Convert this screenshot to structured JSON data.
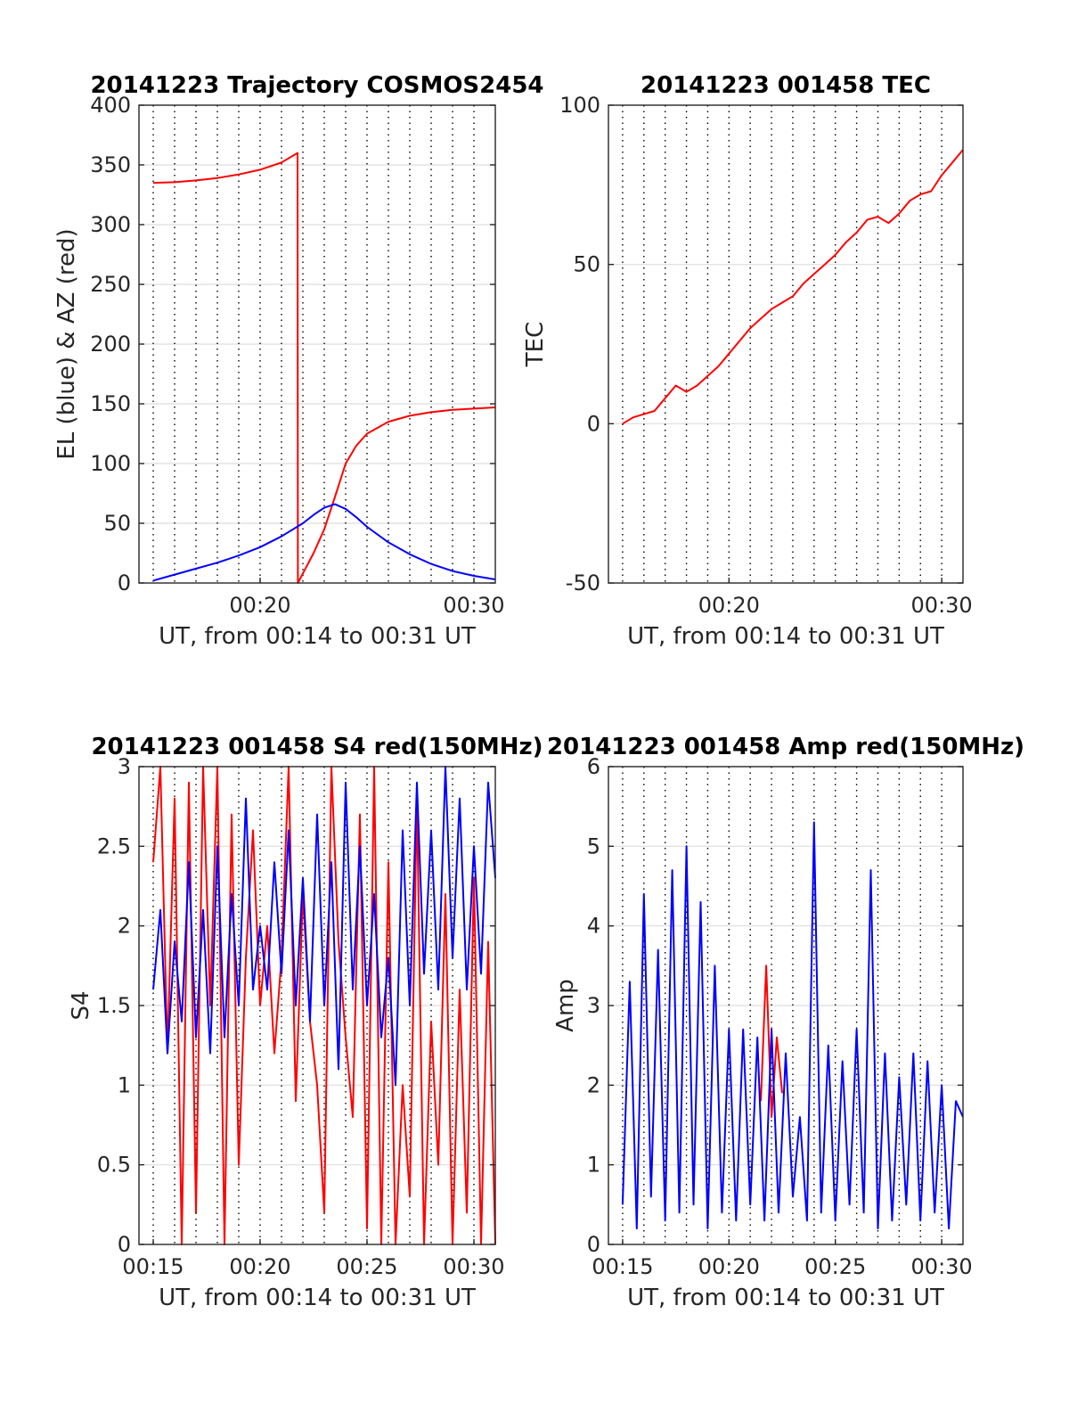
{
  "chart_data": [
    {
      "type": "line",
      "title": "20141223 Trajectory COSMOS2454",
      "xlabel": "UT, from 00:14 to 00:31 UT",
      "ylabel": "EL (blue) & AZ (red)",
      "xlim": [
        "00:14:20",
        "00:31:00"
      ],
      "ylim": [
        0,
        400
      ],
      "yticks": [
        0,
        50,
        100,
        150,
        200,
        250,
        300,
        350,
        400
      ],
      "xticks": [
        "00:20",
        "00:30"
      ],
      "minute_grid": [
        "00:15",
        "00:16",
        "00:17",
        "00:18",
        "00:19",
        "00:20",
        "00:21",
        "00:22",
        "00:23",
        "00:24",
        "00:25",
        "00:26",
        "00:27",
        "00:28",
        "00:29",
        "00:30"
      ],
      "grid": true,
      "series": [
        {
          "color": "#ff0000",
          "x": [
            "00:15:00",
            "00:16:00",
            "00:17:00",
            "00:18:00",
            "00:19:00",
            "00:20:00",
            "00:21:00",
            "00:21:45",
            "00:21:46",
            "00:22:00",
            "00:22:30",
            "00:23:00",
            "00:23:30",
            "00:24:00",
            "00:24:30",
            "00:25:00",
            "00:26:00",
            "00:27:00",
            "00:28:00",
            "00:29:00",
            "00:30:00",
            "00:31:00"
          ],
          "y": [
            335,
            335.5,
            337,
            339,
            342,
            346,
            352,
            360,
            0,
            8,
            25,
            45,
            72,
            100,
            115,
            125,
            135,
            140,
            143,
            145,
            146,
            147
          ]
        },
        {
          "color": "#0000ff",
          "x": [
            "00:15:00",
            "00:16:00",
            "00:17:00",
            "00:18:00",
            "00:19:00",
            "00:20:00",
            "00:21:00",
            "00:22:00",
            "00:22:30",
            "00:23:00",
            "00:23:30",
            "00:24:00",
            "00:24:30",
            "00:25:00",
            "00:26:00",
            "00:27:00",
            "00:28:00",
            "00:29:00",
            "00:30:00",
            "00:31:00"
          ],
          "y": [
            2,
            7,
            12,
            17,
            23,
            30,
            39,
            50,
            57,
            63,
            66,
            62,
            55,
            47,
            34,
            24,
            16,
            10,
            6,
            3
          ]
        }
      ]
    },
    {
      "type": "line",
      "title": "20141223 001458 TEC",
      "xlabel": "UT, from 00:14 to 00:31 UT",
      "ylabel": "TEC",
      "xlim": [
        "00:14:20",
        "00:31:00"
      ],
      "ylim": [
        -50,
        100
      ],
      "yticks": [
        -50,
        0,
        50,
        100
      ],
      "xticks": [
        "00:20",
        "00:30"
      ],
      "minute_grid": [
        "00:15",
        "00:16",
        "00:17",
        "00:18",
        "00:19",
        "00:20",
        "00:21",
        "00:22",
        "00:23",
        "00:24",
        "00:25",
        "00:26",
        "00:27",
        "00:28",
        "00:29",
        "00:30"
      ],
      "grid": true,
      "series": [
        {
          "color": "#ff0000",
          "x": [
            "00:15:00",
            "00:15:30",
            "00:16:00",
            "00:16:30",
            "00:17:00",
            "00:17:30",
            "00:18:00",
            "00:18:30",
            "00:19:00",
            "00:19:30",
            "00:20:00",
            "00:20:30",
            "00:21:00",
            "00:21:30",
            "00:22:00",
            "00:22:30",
            "00:23:00",
            "00:23:30",
            "00:24:00",
            "00:24:30",
            "00:25:00",
            "00:25:30",
            "00:26:00",
            "00:26:30",
            "00:27:00",
            "00:27:30",
            "00:28:00",
            "00:28:30",
            "00:29:00",
            "00:29:30",
            "00:30:00",
            "00:30:30",
            "00:31:00"
          ],
          "y": [
            0,
            2,
            3,
            4,
            8,
            12,
            10,
            12,
            15,
            18,
            22,
            26,
            30,
            33,
            36,
            38,
            40,
            44,
            47,
            50,
            53,
            57,
            60,
            64,
            65,
            63,
            66,
            70,
            72,
            73,
            78,
            82,
            86
          ]
        }
      ]
    },
    {
      "type": "line",
      "title": "20141223 001458 S4 red(150MHz)",
      "xlabel": "UT, from 00:14 to 00:31 UT",
      "ylabel": "S4",
      "xlim": [
        "00:14:20",
        "00:31:00"
      ],
      "ylim": [
        0,
        3
      ],
      "yticks": [
        0,
        0.5,
        1,
        1.5,
        2,
        2.5,
        3
      ],
      "xticks": [
        "00:15",
        "00:20",
        "00:25",
        "00:30"
      ],
      "minute_grid": [
        "00:15",
        "00:16",
        "00:17",
        "00:18",
        "00:19",
        "00:20",
        "00:21",
        "00:22",
        "00:23",
        "00:24",
        "00:25",
        "00:26",
        "00:27",
        "00:28",
        "00:29",
        "00:30"
      ],
      "grid": true,
      "series": [
        {
          "color": "#ff0000",
          "x": [
            "00:15:00",
            "00:15:20",
            "00:15:40",
            "00:16:00",
            "00:16:20",
            "00:16:40",
            "00:17:00",
            "00:17:20",
            "00:17:40",
            "00:18:00",
            "00:18:20",
            "00:18:40",
            "00:19:00",
            "00:19:20",
            "00:19:40",
            "00:20:00",
            "00:20:20",
            "00:20:40",
            "00:21:00",
            "00:21:20",
            "00:21:40",
            "00:22:00",
            "00:22:20",
            "00:22:40",
            "00:23:00",
            "00:23:20",
            "00:23:40",
            "00:24:00",
            "00:24:20",
            "00:24:40",
            "00:25:00",
            "00:25:20",
            "00:25:40",
            "00:26:00",
            "00:26:20",
            "00:26:40",
            "00:27:00",
            "00:27:20",
            "00:27:40",
            "00:28:00",
            "00:28:20",
            "00:28:40",
            "00:29:00",
            "00:29:20",
            "00:29:40",
            "00:30:00",
            "00:30:20",
            "00:30:40",
            "00:31:00"
          ],
          "y": [
            2.4,
            3.0,
            1.2,
            2.8,
            0,
            2.9,
            0.2,
            3.0,
            1.5,
            3.0,
            0,
            2.7,
            0.5,
            1.8,
            2.6,
            1.5,
            2.0,
            1.2,
            1.8,
            3.0,
            0.9,
            2.2,
            1.4,
            1.0,
            0.2,
            3.0,
            1.9,
            1.3,
            0.8,
            2.7,
            0.1,
            3.0,
            0,
            2.4,
            0,
            1.0,
            0.3,
            2.8,
            0,
            1.4,
            0.5,
            2.2,
            0,
            1.6,
            0.2,
            2.3,
            0,
            1.9,
            0
          ]
        },
        {
          "color": "#0000ff",
          "x": [
            "00:15:00",
            "00:15:20",
            "00:15:40",
            "00:16:00",
            "00:16:20",
            "00:16:40",
            "00:17:00",
            "00:17:20",
            "00:17:40",
            "00:18:00",
            "00:18:20",
            "00:18:40",
            "00:19:00",
            "00:19:20",
            "00:19:40",
            "00:20:00",
            "00:20:20",
            "00:20:40",
            "00:21:00",
            "00:21:20",
            "00:21:40",
            "00:22:00",
            "00:22:20",
            "00:22:40",
            "00:23:00",
            "00:23:20",
            "00:23:40",
            "00:24:00",
            "00:24:20",
            "00:24:40",
            "00:25:00",
            "00:25:20",
            "00:25:40",
            "00:26:00",
            "00:26:20",
            "00:26:40",
            "00:27:00",
            "00:27:20",
            "00:27:40",
            "00:28:00",
            "00:28:20",
            "00:28:40",
            "00:29:00",
            "00:29:20",
            "00:29:40",
            "00:30:00",
            "00:30:20",
            "00:30:40",
            "00:31:00"
          ],
          "y": [
            1.6,
            2.1,
            1.2,
            1.9,
            1.4,
            2.4,
            1.3,
            2.1,
            1.2,
            2.5,
            1.3,
            2.2,
            1.5,
            2.8,
            1.6,
            2.0,
            1.6,
            2.4,
            1.7,
            2.6,
            1.5,
            2.3,
            1.4,
            2.7,
            1.5,
            2.4,
            1.1,
            2.9,
            1.6,
            2.5,
            1.5,
            2.2,
            1.3,
            1.8,
            1.0,
            2.6,
            1.5,
            2.9,
            1.7,
            2.6,
            1.6,
            3.0,
            1.8,
            2.8,
            1.6,
            2.5,
            1.7,
            2.9,
            2.3
          ]
        }
      ]
    },
    {
      "type": "line",
      "title": "20141223 001458 Amp red(150MHz)",
      "xlabel": "UT, from 00:14 to 00:31 UT",
      "ylabel": "Amp",
      "xlim": [
        "00:14:20",
        "00:31:00"
      ],
      "ylim": [
        0,
        6
      ],
      "yticks": [
        0,
        1,
        2,
        3,
        4,
        5,
        6
      ],
      "xticks": [
        "00:15",
        "00:20",
        "00:25",
        "00:30"
      ],
      "minute_grid": [
        "00:15",
        "00:16",
        "00:17",
        "00:18",
        "00:19",
        "00:20",
        "00:21",
        "00:22",
        "00:23",
        "00:24",
        "00:25",
        "00:26",
        "00:27",
        "00:28",
        "00:29",
        "00:30"
      ],
      "grid": true,
      "series": [
        {
          "color": "#ff0000",
          "x": [
            "00:21:30",
            "00:21:45",
            "00:22:00",
            "00:22:15",
            "00:22:30"
          ],
          "y": [
            1.8,
            3.5,
            1.6,
            2.6,
            1.9
          ]
        },
        {
          "color": "#0000ff",
          "x": [
            "00:15:00",
            "00:15:20",
            "00:15:40",
            "00:16:00",
            "00:16:20",
            "00:16:40",
            "00:17:00",
            "00:17:20",
            "00:17:40",
            "00:18:00",
            "00:18:20",
            "00:18:40",
            "00:19:00",
            "00:19:20",
            "00:19:40",
            "00:20:00",
            "00:20:20",
            "00:20:40",
            "00:21:00",
            "00:21:20",
            "00:21:40",
            "00:22:00",
            "00:22:20",
            "00:22:40",
            "00:23:00",
            "00:23:20",
            "00:23:40",
            "00:24:00",
            "00:24:20",
            "00:24:40",
            "00:25:00",
            "00:25:20",
            "00:25:40",
            "00:26:00",
            "00:26:20",
            "00:26:40",
            "00:27:00",
            "00:27:20",
            "00:27:40",
            "00:28:00",
            "00:28:20",
            "00:28:40",
            "00:29:00",
            "00:29:20",
            "00:29:40",
            "00:30:00",
            "00:30:20",
            "00:30:40",
            "00:31:00"
          ],
          "y": [
            0.5,
            3.3,
            0.2,
            4.4,
            0.6,
            3.7,
            0.3,
            4.7,
            0.4,
            5.0,
            0.5,
            4.3,
            0.2,
            3.5,
            0.4,
            2.7,
            0.3,
            2.7,
            0.5,
            2.6,
            0.3,
            2.7,
            0.4,
            2.4,
            0.6,
            1.6,
            0.3,
            5.3,
            0.4,
            2.5,
            0.3,
            2.3,
            0.5,
            2.7,
            0.4,
            4.7,
            0.2,
            2.4,
            0.3,
            2.1,
            0.5,
            2.4,
            0.3,
            2.3,
            0.4,
            2.0,
            0.2,
            1.8,
            1.6
          ]
        }
      ]
    }
  ]
}
